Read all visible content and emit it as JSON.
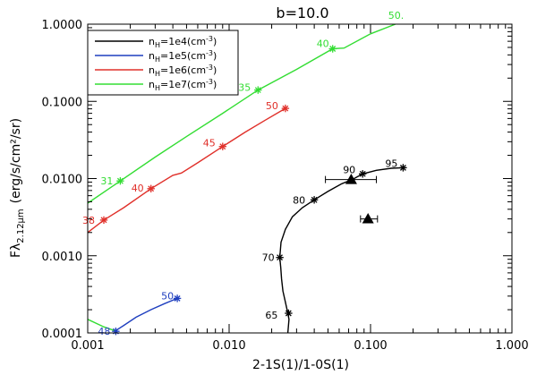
{
  "chart_data": {
    "type": "line",
    "title": "b=10.0",
    "xlabel": "2-1S(1)/1-0S(1)",
    "ylabel": "Fλ",
    "ylabel_sub": "2.12μm",
    "ylabel_units": "(erg/s/cm²/sr)",
    "x_scale": "log",
    "y_scale": "log",
    "xlim": [
      0.001,
      1.0
    ],
    "ylim": [
      0.0001,
      1.0
    ],
    "x_ticks": [
      {
        "value": 0.001,
        "label": "0.001"
      },
      {
        "value": 0.01,
        "label": "0.010"
      },
      {
        "value": 0.1,
        "label": "0.100"
      },
      {
        "value": 1.0,
        "label": "1.000"
      }
    ],
    "y_ticks": [
      {
        "value": 0.0001,
        "label": "0.0001"
      },
      {
        "value": 0.001,
        "label": "0.0010"
      },
      {
        "value": 0.01,
        "label": "0.0100"
      },
      {
        "value": 0.1,
        "label": "0.1000"
      },
      {
        "value": 1.0,
        "label": "1.0000"
      }
    ],
    "legend_position": "top-left",
    "series": [
      {
        "name": "n_H=1e4(cm^-3)",
        "legend_base": "n",
        "legend_sub": "H",
        "legend_mid": "=1e4(cm",
        "legend_sup": "-3",
        "legend_end": ")",
        "color": "#000000",
        "curve": [
          [
            0.026,
            0.0001
          ],
          [
            0.0265,
            0.00015
          ],
          [
            0.026,
            0.00018
          ],
          [
            0.025,
            0.00025
          ],
          [
            0.024,
            0.00035
          ],
          [
            0.0235,
            0.0005
          ],
          [
            0.0232,
            0.0007
          ],
          [
            0.0228,
            0.00095
          ],
          [
            0.0233,
            0.0015
          ],
          [
            0.025,
            0.0022
          ],
          [
            0.028,
            0.0032
          ],
          [
            0.033,
            0.0042
          ],
          [
            0.04,
            0.0053
          ],
          [
            0.05,
            0.0068
          ],
          [
            0.062,
            0.0085
          ],
          [
            0.075,
            0.0098
          ],
          [
            0.088,
            0.0115
          ],
          [
            0.11,
            0.0128
          ],
          [
            0.14,
            0.0136
          ],
          [
            0.17,
            0.0138
          ]
        ],
        "points": [
          {
            "x": 0.0263,
            "y": 0.00018,
            "label": "65"
          },
          {
            "x": 0.0228,
            "y": 0.00095,
            "label": "70"
          },
          {
            "x": 0.04,
            "y": 0.0053,
            "label": "80"
          },
          {
            "x": 0.088,
            "y": 0.0115,
            "label": "90"
          },
          {
            "x": 0.17,
            "y": 0.0138,
            "label": "95"
          }
        ]
      },
      {
        "name": "n_H=1e5(cm^-3)",
        "legend_base": "n",
        "legend_sub": "H",
        "legend_mid": "=1e5(cm",
        "legend_sup": "-3",
        "legend_end": ")",
        "color": "#1f3fbf",
        "curve": [
          [
            0.00155,
            0.000105
          ],
          [
            0.0018,
            0.000125
          ],
          [
            0.0022,
            0.00016
          ],
          [
            0.0028,
            0.0002
          ],
          [
            0.0035,
            0.00024
          ],
          [
            0.0043,
            0.00028
          ]
        ],
        "points": [
          {
            "x": 0.00158,
            "y": 0.000105,
            "label": "48"
          },
          {
            "x": 0.0043,
            "y": 0.00028,
            "label": "50"
          }
        ]
      },
      {
        "name": "n_H=1e6(cm^-3)",
        "legend_base": "n",
        "legend_sub": "H",
        "legend_mid": "=1e6(cm",
        "legend_sup": "-3",
        "legend_end": ")",
        "color": "#e0302a",
        "curve": [
          [
            0.001,
            0.002
          ],
          [
            0.0013,
            0.0029
          ],
          [
            0.0018,
            0.0042
          ],
          [
            0.0028,
            0.0074
          ],
          [
            0.004,
            0.011
          ],
          [
            0.0046,
            0.0118
          ],
          [
            0.006,
            0.016
          ],
          [
            0.009,
            0.026
          ],
          [
            0.013,
            0.04
          ],
          [
            0.018,
            0.057
          ],
          [
            0.025,
            0.081
          ]
        ],
        "points": [
          {
            "x": 0.0013,
            "y": 0.0029,
            "label": "38"
          },
          {
            "x": 0.0028,
            "y": 0.0074,
            "label": "40"
          },
          {
            "x": 0.009,
            "y": 0.026,
            "label": "45"
          },
          {
            "x": 0.025,
            "y": 0.081,
            "label": "50"
          }
        ]
      },
      {
        "name": "n_H=1e7(cm^-3)",
        "legend_base": "n",
        "legend_sub": "H",
        "legend_mid": "=1e7(cm",
        "legend_sup": "-3",
        "legend_end": ")",
        "color": "#33dd33",
        "curve": [
          [
            0.001,
            0.0048
          ],
          [
            0.0017,
            0.0093
          ],
          [
            0.003,
            0.019
          ],
          [
            0.005,
            0.035
          ],
          [
            0.009,
            0.07
          ],
          [
            0.016,
            0.14
          ],
          [
            0.03,
            0.26
          ],
          [
            0.054,
            0.48
          ],
          [
            0.065,
            0.49
          ],
          [
            0.1,
            0.75
          ],
          [
            0.15,
            1.0
          ]
        ],
        "points": [
          {
            "x": 0.0017,
            "y": 0.0093,
            "label": "31"
          },
          {
            "x": 0.016,
            "y": 0.14,
            "label": "35"
          },
          {
            "x": 0.054,
            "y": 0.48,
            "label": "40"
          }
        ],
        "end_label": {
          "x": 0.15,
          "y": 1.0,
          "label": "50."
        }
      }
    ],
    "extra_lines": [
      {
        "color": "#33dd33",
        "curve": [
          [
            0.001,
            0.00015
          ],
          [
            0.0013,
            0.00012
          ],
          [
            0.0016,
            0.000105
          ]
        ]
      }
    ],
    "observations": [
      {
        "x": 0.073,
        "y": 0.0097,
        "xerr": [
          0.048,
          0.11
        ]
      },
      {
        "x": 0.096,
        "y": 0.003,
        "xerr": [
          0.085,
          0.112
        ]
      }
    ]
  }
}
